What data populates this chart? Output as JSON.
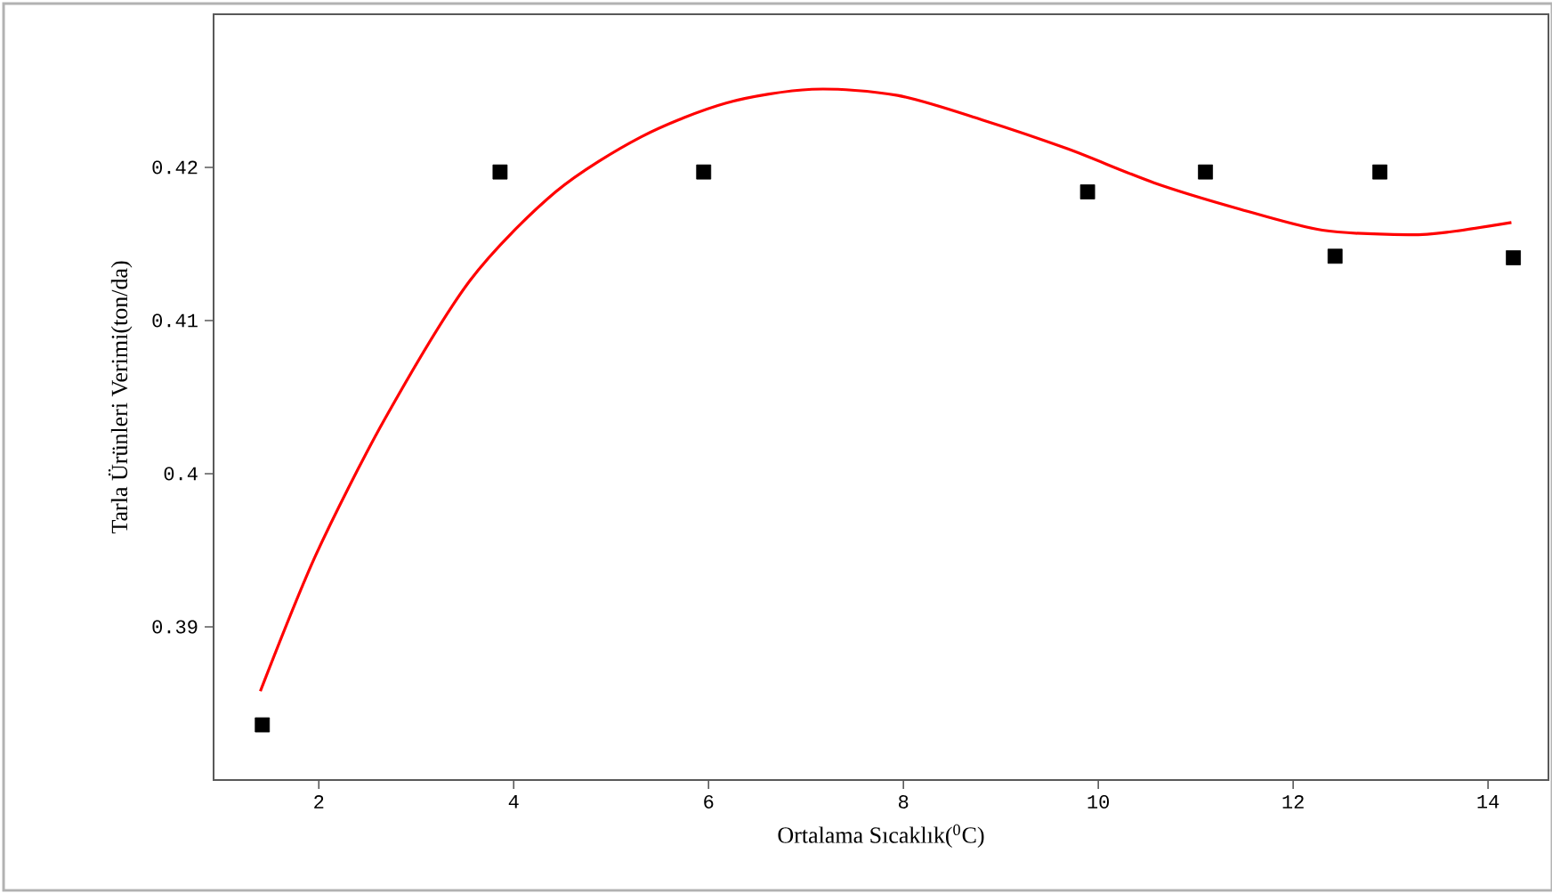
{
  "chart_data": {
    "type": "scatter",
    "xlabel": "Ortalama Sıcaklık($^{0}$C)",
    "ylabel": "Tarla Ürünleri Verimi(ton/da)",
    "xlim": [
      0.92,
      14.62
    ],
    "ylim": [
      0.38,
      0.43
    ],
    "xticks": [
      2,
      4,
      6,
      8,
      10,
      12,
      14
    ],
    "yticks": [
      0.39,
      0.4,
      0.41,
      0.42
    ],
    "series": [
      {
        "color": "#000000",
        "marker": "square",
        "x": [
          1.42,
          3.86,
          5.95,
          9.89,
          11.1,
          12.43,
          12.89,
          14.26
        ],
        "values": [
          0.3836,
          0.4197,
          0.4197,
          0.4184,
          0.4197,
          0.4142,
          0.4197,
          0.4141
        ]
      },
      {
        "type": "line",
        "color": "#ff0000",
        "marker": "none",
        "line_style": "solid",
        "x": [
          1.4,
          1.97,
          2.68,
          3.55,
          4.43,
          5.31,
          6.18,
          7.06,
          7.94,
          8.81,
          9.69,
          10.57,
          11.44,
          12.3,
          13.18,
          13.62,
          14.24
        ],
        "values": [
          0.3858,
          0.3947,
          0.4036,
          0.4126,
          0.4184,
          0.422,
          0.4242,
          0.4251,
          0.4247,
          0.4231,
          0.4212,
          0.419,
          0.4173,
          0.4159,
          0.4156,
          0.4158,
          0.4164
        ]
      }
    ]
  }
}
